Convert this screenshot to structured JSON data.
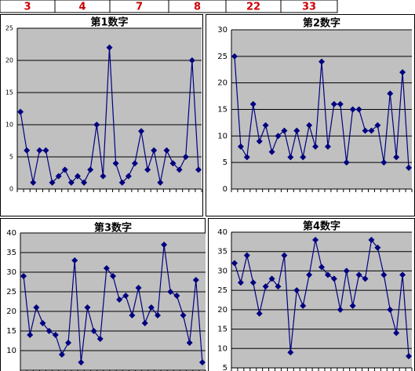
{
  "header_row": {
    "cells": [
      3,
      4,
      7,
      8,
      22,
      33
    ]
  },
  "chart_data": [
    {
      "type": "line",
      "title": "第1数字",
      "color": "#000080",
      "ylim": [
        0,
        25
      ],
      "yticks": [
        0,
        5,
        10,
        15,
        20,
        25
      ],
      "grid": true,
      "values": [
        12,
        6,
        1,
        6,
        6,
        1,
        2,
        3,
        1,
        2,
        1,
        3,
        10,
        2,
        22,
        4,
        1,
        2,
        4,
        9,
        3,
        6,
        1,
        6,
        4,
        3,
        5,
        20,
        3
      ]
    },
    {
      "type": "line",
      "title": "第2数字",
      "color": "#000080",
      "ylim": [
        0,
        30
      ],
      "yticks": [
        0,
        5,
        10,
        15,
        20,
        25,
        30
      ],
      "grid": true,
      "values": [
        25,
        8,
        6,
        16,
        9,
        12,
        7,
        10,
        11,
        6,
        11,
        6,
        12,
        8,
        24,
        8,
        16,
        16,
        5,
        15,
        15,
        11,
        11,
        12,
        5,
        18,
        6,
        22,
        4
      ]
    },
    {
      "type": "line",
      "title": "第3数字",
      "color": "#000080",
      "ylim": [
        5,
        40
      ],
      "yticks": [
        10,
        15,
        20,
        25,
        30,
        35,
        40
      ],
      "grid": true,
      "values": [
        29,
        14,
        21,
        17,
        15,
        14,
        9,
        12,
        33,
        7,
        21,
        15,
        13,
        31,
        29,
        23,
        24,
        19,
        26,
        17,
        21,
        19,
        37,
        25,
        24,
        19,
        12,
        28,
        7
      ]
    },
    {
      "type": "line",
      "title": "第4数字",
      "color": "#000080",
      "ylim": [
        5,
        40
      ],
      "yticks": [
        5,
        10,
        15,
        20,
        25,
        30,
        35,
        40
      ],
      "grid": true,
      "values": [
        32,
        27,
        34,
        27,
        19,
        26,
        28,
        26,
        34,
        9,
        25,
        21,
        29,
        38,
        31,
        29,
        28,
        20,
        30,
        21,
        29,
        28,
        38,
        36,
        29,
        20,
        14,
        29,
        8
      ]
    }
  ]
}
